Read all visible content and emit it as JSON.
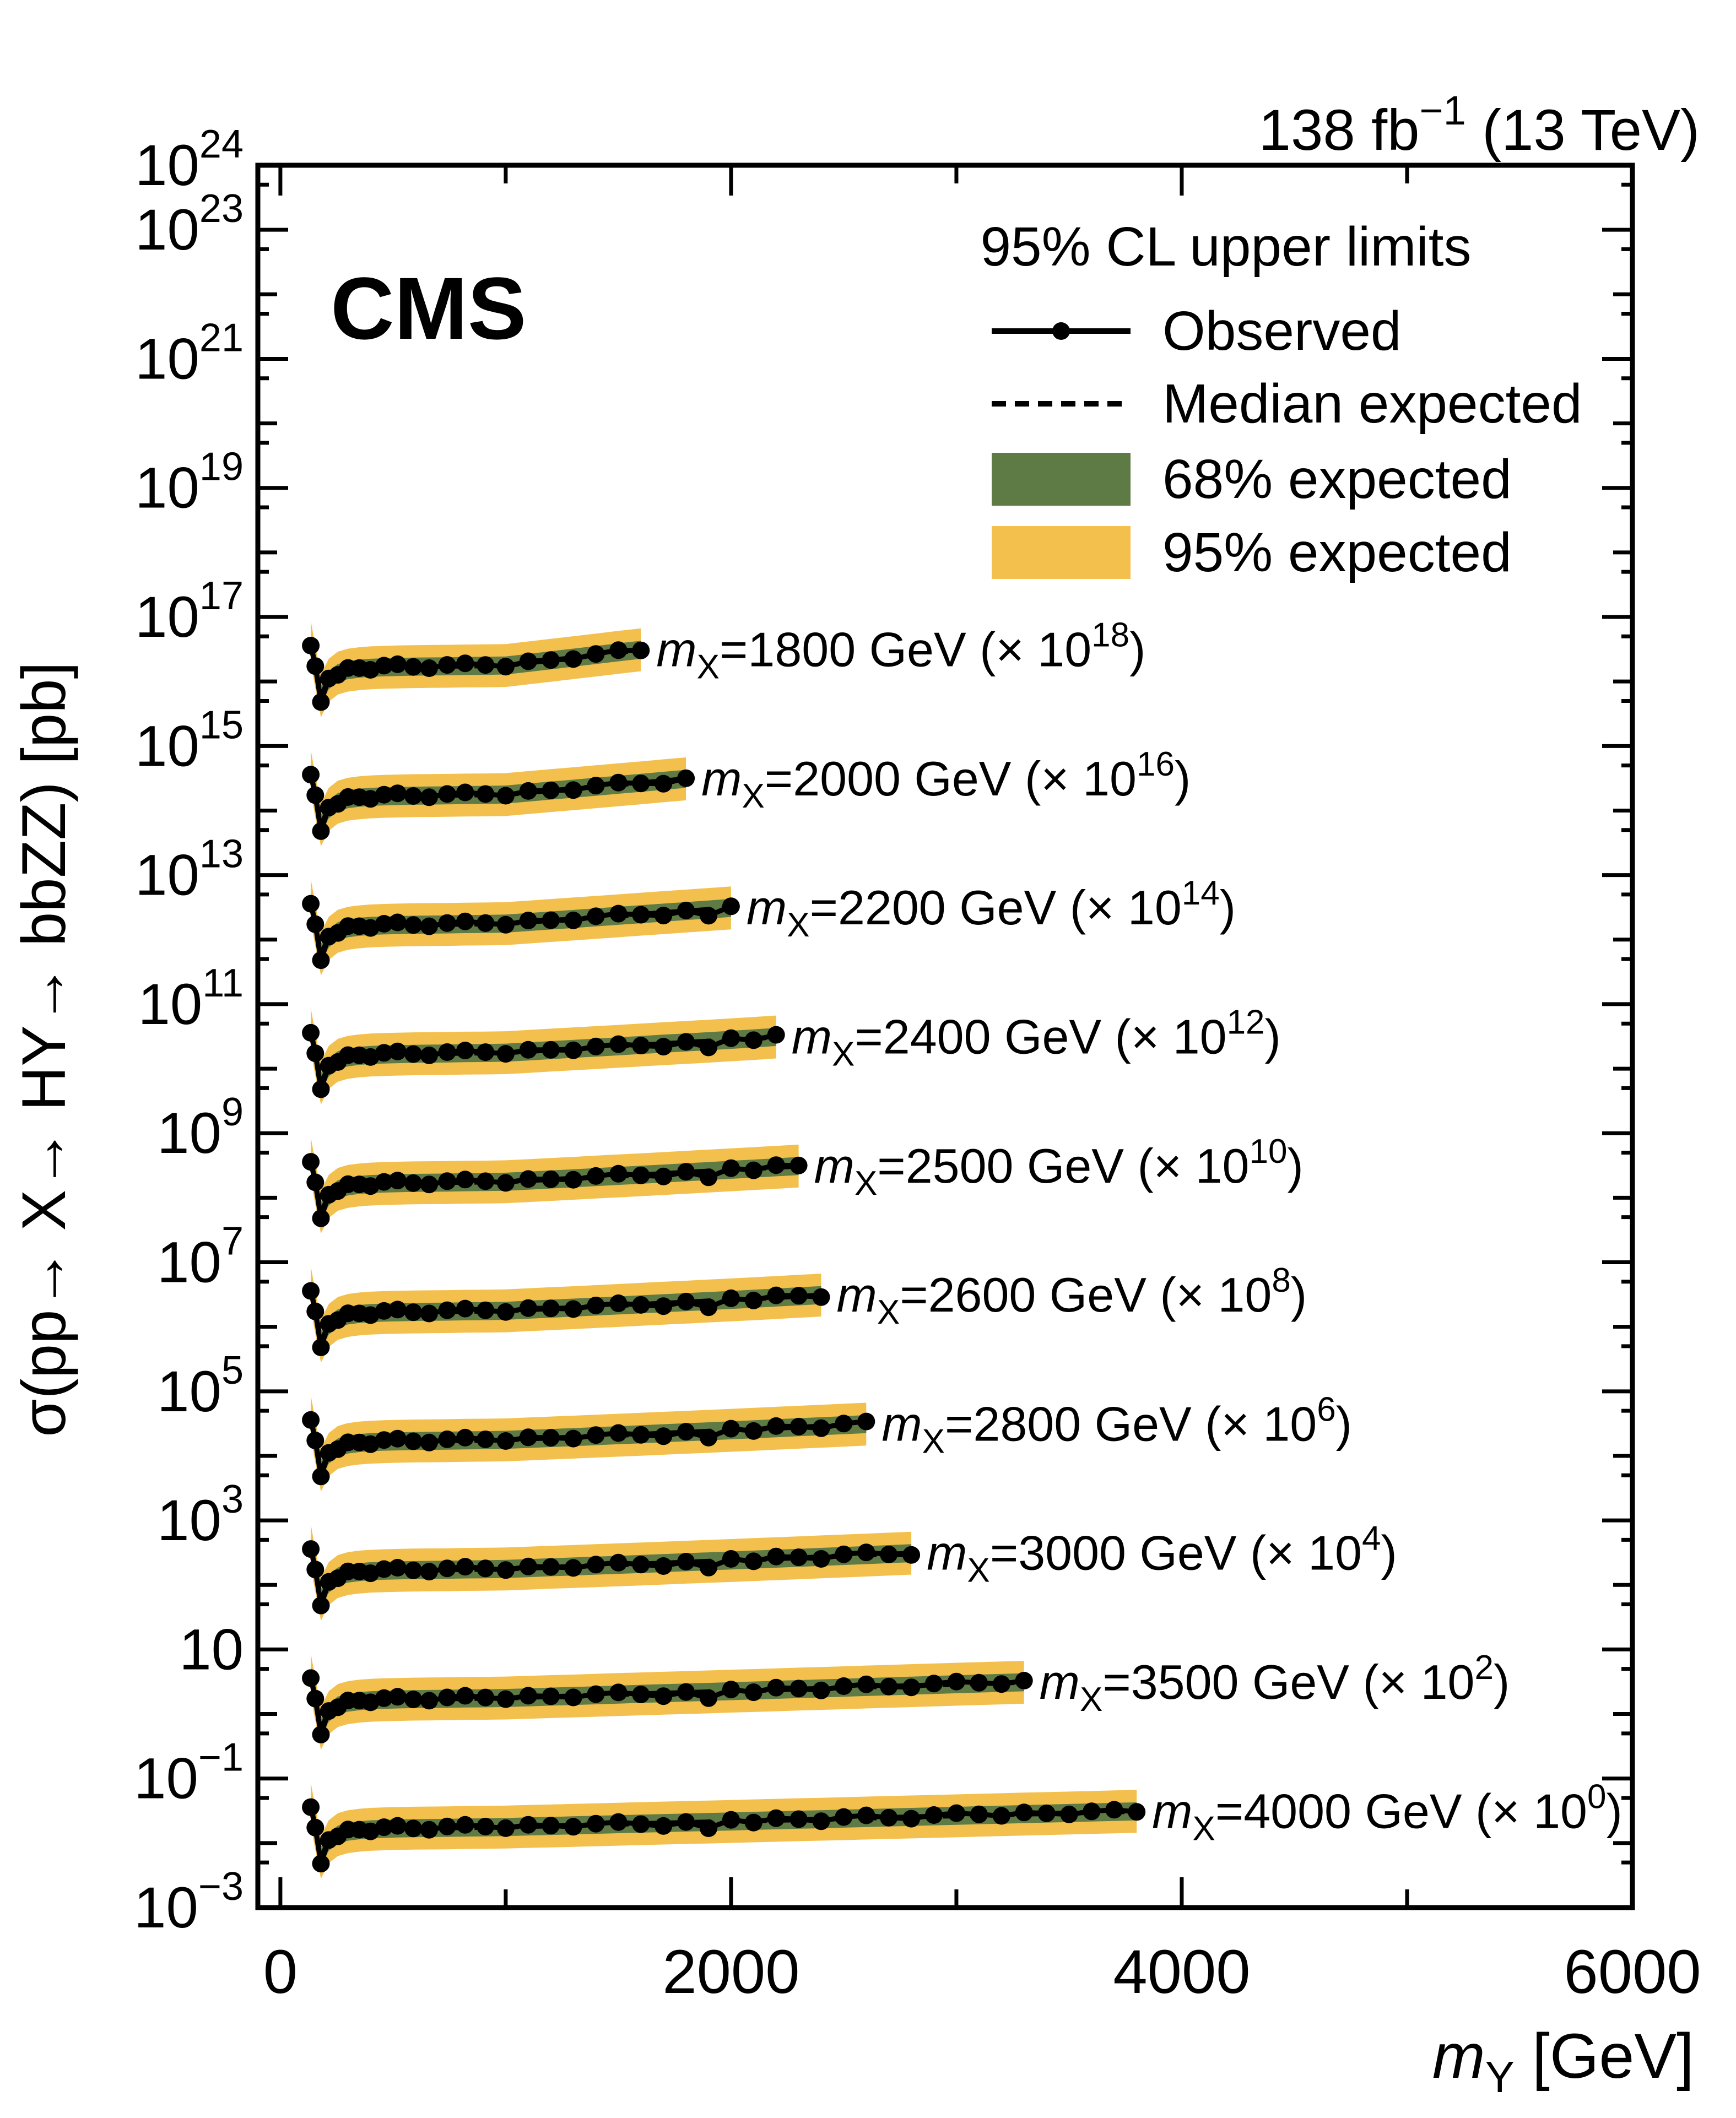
{
  "title": {
    "experiment": "CMS",
    "lumi_main": "138 fb",
    "lumi_sup": "−1",
    "lumi_suffix": " (13 TeV)"
  },
  "legend": {
    "header": "95% CL upper limits",
    "items": [
      {
        "name": "observed",
        "label": "Observed",
        "type": "line-marker"
      },
      {
        "name": "median-expected",
        "label": "Median expected",
        "type": "dashed-line"
      },
      {
        "name": "68-expected",
        "label": "68% expected",
        "type": "box",
        "color": "#5e7a45"
      },
      {
        "name": "95-expected",
        "label": "95% expected",
        "type": "box",
        "color": "#f3c04e"
      }
    ]
  },
  "axes": {
    "x": {
      "title_main": "m",
      "title_sub": "Y",
      "title_suffix": " [GeV]",
      "min": -100,
      "max": 6000,
      "major_ticks": [
        0,
        2000,
        4000,
        6000
      ],
      "minor_ticks": [
        1000,
        3000,
        5000
      ],
      "tick_labels": [
        "0",
        "2000",
        "4000",
        "6000"
      ]
    },
    "y": {
      "title": "σ(pp→ X→ HY→ bbZZ) [pb]",
      "units": "pb",
      "log_min": -3,
      "log_max": 24,
      "labeled_exponents": [
        -3,
        -1,
        1,
        3,
        5,
        7,
        9,
        11,
        13,
        15,
        17,
        19,
        21,
        23,
        24
      ]
    }
  },
  "colors": {
    "band68": "#5e7a45",
    "band95": "#f3c04e",
    "line": "#000000",
    "background": "#ffffff"
  },
  "chart_data": {
    "type": "line",
    "title": "95% CL upper limits on sigma(pp->X->HY->bbZZ) vs mY for several mX",
    "xlabel": "m_Y [GeV]",
    "ylabel": "sigma(pp-> X-> HY-> bbZZ) [pb]",
    "x_range": [
      -100,
      6000
    ],
    "y_log_range": [
      -3,
      24
    ],
    "grid": false,
    "legend_position": "top-right-inside",
    "band_ratio_68": 1.38,
    "band_ratio_95": 2.15,
    "observed_ratio_pattern": [
      0.9,
      1.02,
      0.8,
      1.06,
      0.94,
      1.08,
      1.02,
      0.93,
      1.06,
      1.1,
      0.99,
      0.94,
      1.05,
      1.1,
      1.03,
      0.96,
      1.06,
      1.01,
      0.95,
      1.04,
      1.08,
      0.98
    ],
    "my_head": [
      135,
      155,
      180,
      215,
      255,
      300,
      350,
      400,
      460,
      520,
      590,
      660,
      740,
      820,
      910,
      1000
    ],
    "expected_head_pb": [
      0.04,
      0.017,
      0.006,
      0.0105,
      0.0135,
      0.015,
      0.0158,
      0.0163,
      0.0166,
      0.0168,
      0.017,
      0.0171,
      0.0172,
      0.0174,
      0.0175,
      0.0177
    ],
    "my_tail_start": 1100,
    "my_tail_step": 100,
    "series": [
      {
        "mx": 1800,
        "mx_label": "1800",
        "scale_exp": 18,
        "label_text": "m_X=1800 GeV (× 10^18)",
        "my_max": 1600,
        "expected_tail_pb": [
          0.0194,
          0.0213,
          0.0234,
          0.0257,
          0.0283,
          0.031
        ]
      },
      {
        "mx": 2000,
        "mx_label": "2000",
        "scale_exp": 16,
        "label_text": "m_X=2000 GeV (× 10^16)",
        "my_max": 1800,
        "expected_tail_pb": [
          0.019,
          0.0204,
          0.0218,
          0.0234,
          0.0251,
          0.0269,
          0.0289,
          0.031
        ]
      },
      {
        "mx": 2200,
        "mx_label": "2200",
        "scale_exp": 14,
        "label_text": "m_X=2200 GeV (× 10^14)",
        "my_max": 2000,
        "expected_tail_pb": [
          0.0187,
          0.0198,
          0.0209,
          0.0221,
          0.0234,
          0.0248,
          0.0262,
          0.0277,
          0.0293,
          0.031
        ]
      },
      {
        "mx": 2400,
        "mx_label": "2400",
        "scale_exp": 12,
        "label_text": "m_X=2400 GeV (× 10^12)",
        "my_max": 2200,
        "expected_tail_pb": [
          0.0185,
          0.0194,
          0.0203,
          0.0212,
          0.0222,
          0.0233,
          0.0244,
          0.0255,
          0.0267,
          0.028,
          0.0294,
          0.031
        ]
      },
      {
        "mx": 2500,
        "mx_label": "2500",
        "scale_exp": 10,
        "label_text": "m_X=2500 GeV (× 10^10)",
        "my_max": 2300,
        "expected_tail_pb": [
          0.0184,
          0.0192,
          0.02,
          0.0209,
          0.0218,
          0.0227,
          0.0237,
          0.0248,
          0.0259,
          0.0271,
          0.0283,
          0.0296,
          0.031
        ]
      },
      {
        "mx": 2600,
        "mx_label": "2600",
        "scale_exp": 8,
        "label_text": "m_X=2600 GeV (× 10^8)",
        "my_max": 2400,
        "expected_tail_pb": [
          0.0184,
          0.0191,
          0.0198,
          0.0206,
          0.0214,
          0.0223,
          0.0232,
          0.0241,
          0.0251,
          0.0261,
          0.0272,
          0.0284,
          0.0297,
          0.031
        ]
      },
      {
        "mx": 2800,
        "mx_label": "2800",
        "scale_exp": 6,
        "label_text": "m_X=2800 GeV (× 10^6)",
        "my_max": 2600,
        "expected_tail_pb": [
          0.0183,
          0.0189,
          0.0195,
          0.0202,
          0.0209,
          0.0216,
          0.0224,
          0.0232,
          0.024,
          0.0249,
          0.0258,
          0.0268,
          0.0278,
          0.0288,
          0.0299,
          0.031
        ]
      },
      {
        "mx": 3000,
        "mx_label": "3000",
        "scale_exp": 4,
        "label_text": "m_X=3000 GeV (× 10^4)",
        "my_max": 2800,
        "expected_tail_pb": [
          0.0182,
          0.0188,
          0.0193,
          0.0199,
          0.0205,
          0.0211,
          0.0218,
          0.0225,
          0.0232,
          0.0239,
          0.0247,
          0.0255,
          0.0263,
          0.0272,
          0.0281,
          0.029,
          0.03,
          0.031
        ]
      },
      {
        "mx": 3500,
        "mx_label": "3500",
        "scale_exp": 2,
        "label_text": "m_X=3500 GeV (× 10^2)",
        "my_max": 3300,
        "expected_tail_pb": [
          0.0181,
          0.0186,
          0.019,
          0.0195,
          0.02,
          0.0205,
          0.021,
          0.0215,
          0.022,
          0.0226,
          0.0231,
          0.0237,
          0.0243,
          0.0249,
          0.0255,
          0.0262,
          0.0268,
          0.0275,
          0.0282,
          0.0289,
          0.0296,
          0.0303,
          0.031
        ]
      },
      {
        "mx": 4000,
        "mx_label": "4000",
        "scale_exp": 0,
        "label_text": "m_X=4000 GeV (× 10^0)",
        "my_max": 3800,
        "expected_tail_pb": [
          0.0181,
          0.0184,
          0.0188,
          0.0192,
          0.0196,
          0.02,
          0.0204,
          0.0208,
          0.0212,
          0.0216,
          0.0221,
          0.0225,
          0.023,
          0.0234,
          0.0239,
          0.0244,
          0.0249,
          0.0254,
          0.0259,
          0.0264,
          0.027,
          0.0275,
          0.0281,
          0.0286,
          0.0292,
          0.0298,
          0.0304,
          0.031
        ]
      }
    ]
  }
}
